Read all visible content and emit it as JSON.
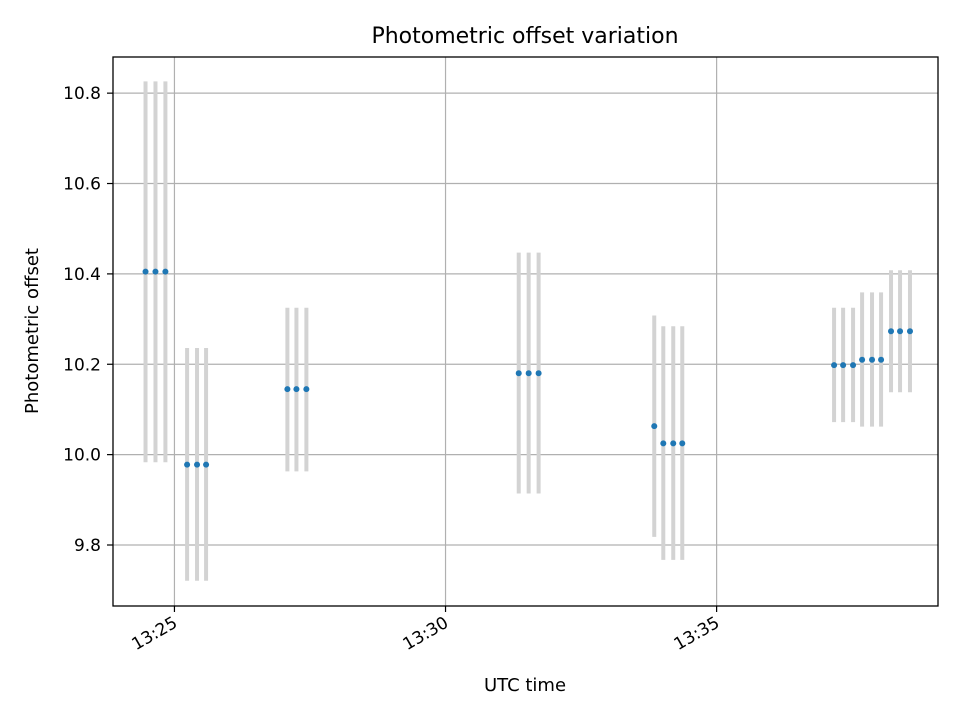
{
  "chart_data": {
    "type": "scatter",
    "title": "Photometric offset variation",
    "xlabel": "UTC time",
    "ylabel": "Photometric offset",
    "xlim": [
      "13:23:52",
      "13:39:05"
    ],
    "ylim": [
      9.665,
      10.88
    ],
    "x_ticks": [
      {
        "label": "13:25",
        "value": "13:25:00"
      },
      {
        "label": "13:30",
        "value": "13:30:00"
      },
      {
        "label": "13:35",
        "value": "13:35:00"
      }
    ],
    "y_ticks": [
      {
        "label": "9.8",
        "value": 9.8
      },
      {
        "label": "10.0",
        "value": 10.0
      },
      {
        "label": "10.2",
        "value": 10.2
      },
      {
        "label": "10.4",
        "value": 10.4
      },
      {
        "label": "10.6",
        "value": 10.6
      },
      {
        "label": "10.8",
        "value": 10.8
      }
    ],
    "grid": true,
    "points": [
      {
        "x": "13:24:28",
        "y": 10.405,
        "yerr_low": 9.983,
        "yerr_high": 10.826
      },
      {
        "x": "13:24:39",
        "y": 10.405,
        "yerr_low": 9.983,
        "yerr_high": 10.826
      },
      {
        "x": "13:24:50",
        "y": 10.405,
        "yerr_low": 9.983,
        "yerr_high": 10.826
      },
      {
        "x": "13:25:14",
        "y": 9.978,
        "yerr_low": 9.721,
        "yerr_high": 10.236
      },
      {
        "x": "13:25:25",
        "y": 9.978,
        "yerr_low": 9.721,
        "yerr_high": 10.236
      },
      {
        "x": "13:25:35",
        "y": 9.978,
        "yerr_low": 9.721,
        "yerr_high": 10.236
      },
      {
        "x": "13:27:05",
        "y": 10.145,
        "yerr_low": 9.963,
        "yerr_high": 10.325
      },
      {
        "x": "13:27:15",
        "y": 10.145,
        "yerr_low": 9.963,
        "yerr_high": 10.325
      },
      {
        "x": "13:27:26",
        "y": 10.145,
        "yerr_low": 9.963,
        "yerr_high": 10.325
      },
      {
        "x": "13:31:21",
        "y": 10.18,
        "yerr_low": 9.914,
        "yerr_high": 10.447
      },
      {
        "x": "13:31:32",
        "y": 10.18,
        "yerr_low": 9.914,
        "yerr_high": 10.447
      },
      {
        "x": "13:31:43",
        "y": 10.18,
        "yerr_low": 9.914,
        "yerr_high": 10.447
      },
      {
        "x": "13:33:51",
        "y": 10.063,
        "yerr_low": 9.818,
        "yerr_high": 10.308
      },
      {
        "x": "13:34:01",
        "y": 10.025,
        "yerr_low": 9.767,
        "yerr_high": 10.284
      },
      {
        "x": "13:34:12",
        "y": 10.025,
        "yerr_low": 9.767,
        "yerr_high": 10.284
      },
      {
        "x": "13:34:22",
        "y": 10.025,
        "yerr_low": 9.767,
        "yerr_high": 10.284
      },
      {
        "x": "13:37:10",
        "y": 10.198,
        "yerr_low": 10.072,
        "yerr_high": 10.325
      },
      {
        "x": "13:37:20",
        "y": 10.198,
        "yerr_low": 10.072,
        "yerr_high": 10.325
      },
      {
        "x": "13:37:31",
        "y": 10.198,
        "yerr_low": 10.072,
        "yerr_high": 10.325
      },
      {
        "x": "13:37:41",
        "y": 10.21,
        "yerr_low": 10.062,
        "yerr_high": 10.359
      },
      {
        "x": "13:37:52",
        "y": 10.21,
        "yerr_low": 10.062,
        "yerr_high": 10.359
      },
      {
        "x": "13:38:02",
        "y": 10.21,
        "yerr_low": 10.062,
        "yerr_high": 10.359
      },
      {
        "x": "13:38:13",
        "y": 10.273,
        "yerr_low": 10.138,
        "yerr_high": 10.408
      },
      {
        "x": "13:38:23",
        "y": 10.273,
        "yerr_low": 10.138,
        "yerr_high": 10.408
      },
      {
        "x": "13:38:34",
        "y": 10.273,
        "yerr_low": 10.138,
        "yerr_high": 10.408
      }
    ],
    "colors": {
      "point": "#1f77b4",
      "errorbar": "#d3d3d3",
      "grid": "#b0b0b0",
      "axes": "#000000"
    }
  }
}
